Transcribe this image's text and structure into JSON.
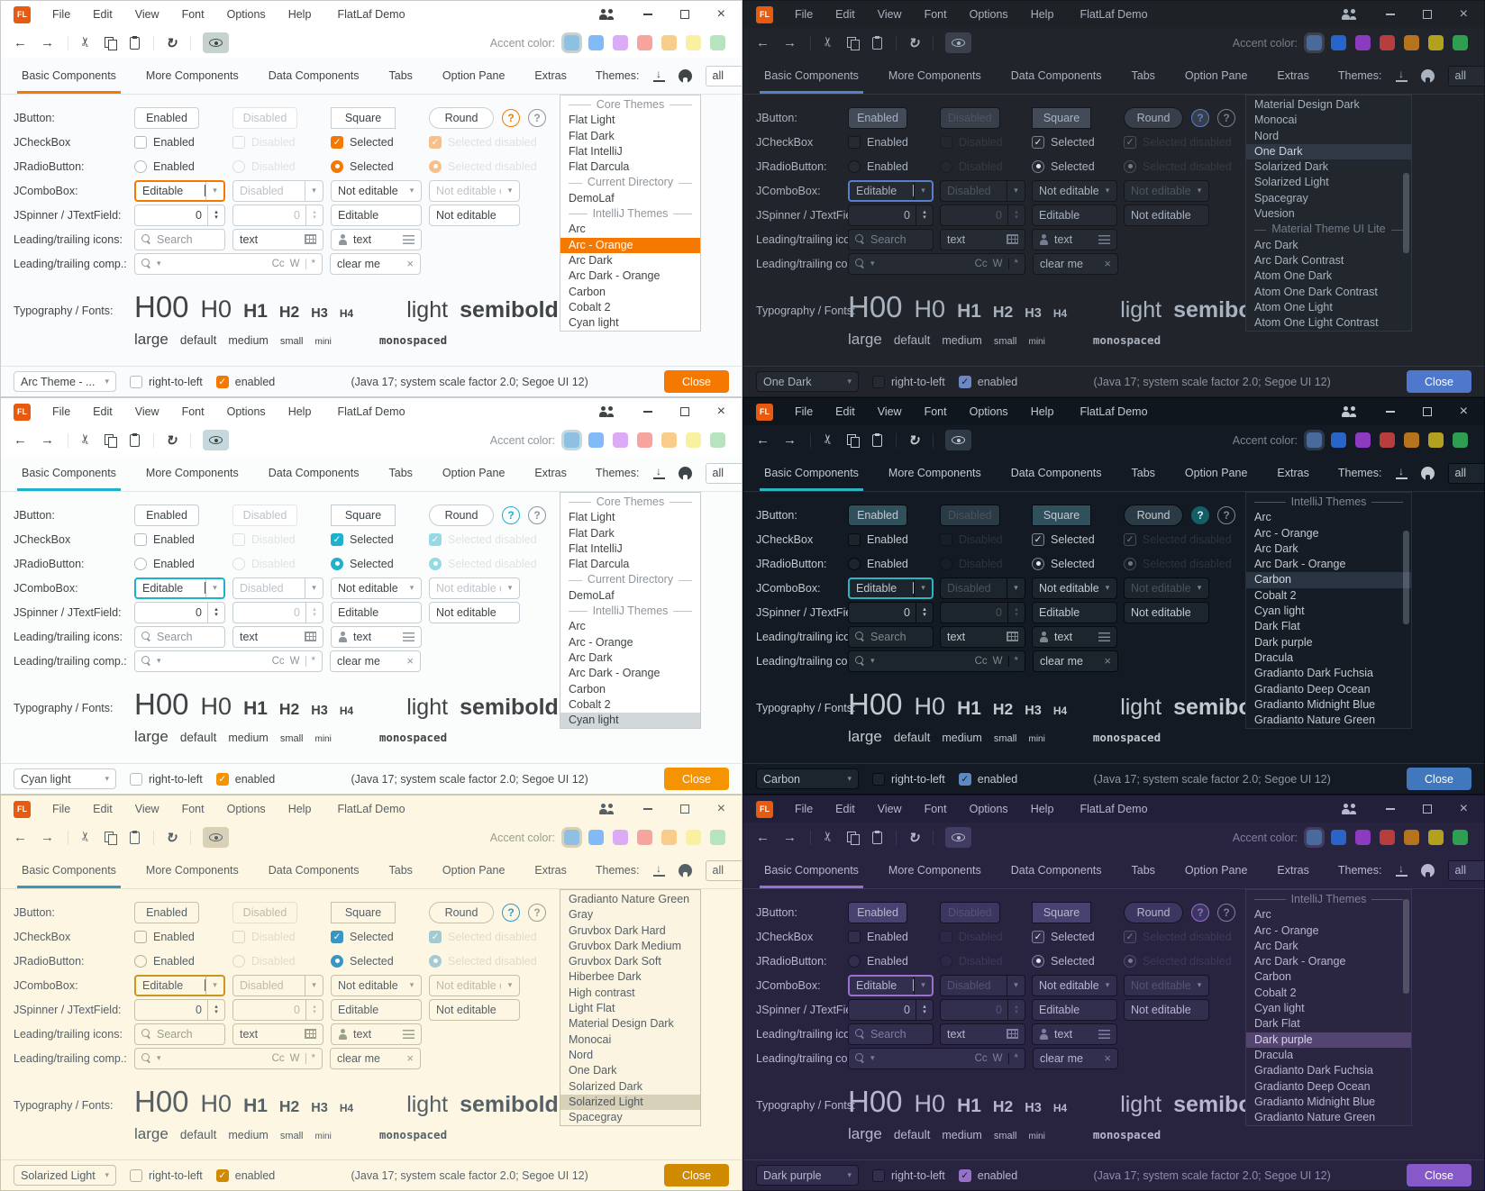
{
  "window": {
    "title": "FlatLaf Demo",
    "menus": [
      "File",
      "Edit",
      "View",
      "Font",
      "Options",
      "Help"
    ]
  },
  "toolbar": {
    "accent_label": "Accent color:",
    "swatches_light": [
      "#8fbfe3",
      "#82baf8",
      "#dcabf5",
      "#f8a49e",
      "#f8cd8b",
      "#f9f0a0",
      "#b7e4bf"
    ],
    "swatches_dark": [
      "#4a6a9c",
      "#2766c8",
      "#8c3ac0",
      "#b83d3d",
      "#b5731d",
      "#b3a01e",
      "#2f9e52"
    ]
  },
  "tabs": [
    "Basic Components",
    "More Components",
    "Data Components",
    "Tabs",
    "Option Pane",
    "Extras"
  ],
  "themes_header": {
    "label": "Themes:",
    "filter_value": "all"
  },
  "form": {
    "jbutton": {
      "label": "JButton:",
      "enabled": "Enabled",
      "disabled": "Disabled",
      "square": "Square",
      "round": "Round",
      "help": "?"
    },
    "jcheckbox": {
      "label": "JCheckBox",
      "enabled": "Enabled",
      "disabled": "Disabled",
      "selected": "Selected",
      "selected_disabled": "Selected disabled"
    },
    "jradio": {
      "label": "JRadioButton:",
      "enabled": "Enabled",
      "disabled": "Disabled",
      "selected": "Selected",
      "selected_disabled": "Selected disabled"
    },
    "jcombobox": {
      "label": "JComboBox:",
      "editable": "Editable",
      "disabled": "Disabled",
      "not_editable": "Not editable",
      "not_editable_disabled": "Not editable dis..."
    },
    "jspinner": {
      "label": "JSpinner / JTextField:",
      "value1": "0",
      "value2": "0",
      "editable": "Editable",
      "not_editable": "Not editable"
    },
    "icons_row": {
      "label": "Leading/trailing icons:",
      "search_placeholder": "Search",
      "text1": "text",
      "text2": "text"
    },
    "comp_row": {
      "label": "Leading/trailing comp.:",
      "match_case": "Cc",
      "whole_word": "W",
      "regex": "*",
      "clear": "clear me"
    },
    "typography": {
      "label": "Typography / Fonts:",
      "samples": [
        "H00",
        "H0",
        "H1",
        "H2",
        "H3",
        "H4"
      ],
      "light": "light",
      "semibold": "semibold",
      "sizes": [
        "large",
        "default",
        "medium",
        "small",
        "mini"
      ],
      "monospaced": "monospaced"
    }
  },
  "bottombar": {
    "rtl": "right-to-left",
    "enabled": "enabled",
    "status": "(Java 17;  system scale factor 2.0; Segoe UI 12)",
    "close": "Close"
  },
  "panels": [
    {
      "theme_class": "t-arc",
      "mode": "light",
      "theme_combo": "Arc Theme - ...",
      "accent": "#f57900",
      "close_color": "#f57900",
      "list": [
        {
          "sep": "Core Themes"
        },
        {
          "label": "Flat Light"
        },
        {
          "label": "Flat Dark"
        },
        {
          "label": "Flat IntelliJ"
        },
        {
          "label": "Flat Darcula"
        },
        {
          "sep": "Current Directory"
        },
        {
          "label": "DemoLaf"
        },
        {
          "sep": "IntelliJ Themes"
        },
        {
          "label": "Arc"
        },
        {
          "label": "Arc - Orange",
          "sel": true
        },
        {
          "label": "Arc Dark"
        },
        {
          "label": "Arc Dark - Orange"
        },
        {
          "label": "Carbon"
        },
        {
          "label": "Cobalt 2"
        },
        {
          "label": "Cyan light"
        }
      ]
    },
    {
      "theme_class": "t-onedark",
      "mode": "dark",
      "theme_combo": "One Dark",
      "accent": "#5680c9",
      "close_color": "#4d78cc",
      "scrollbar": {
        "top_pct": 33,
        "height_pct": 34
      },
      "list": [
        {
          "label": "Material Design Dark"
        },
        {
          "label": "Monocai"
        },
        {
          "label": "Nord"
        },
        {
          "label": "One Dark",
          "sel": true
        },
        {
          "label": "Solarized Dark"
        },
        {
          "label": "Solarized Light"
        },
        {
          "label": "Spacegray"
        },
        {
          "label": "Vuesion"
        },
        {
          "sep": "Material Theme UI Lite"
        },
        {
          "label": "Arc Dark"
        },
        {
          "label": "Arc Dark Contrast"
        },
        {
          "label": "Atom One Dark"
        },
        {
          "label": "Atom One Dark Contrast"
        },
        {
          "label": "Atom One Light"
        },
        {
          "label": "Atom One Light Contrast"
        }
      ]
    },
    {
      "theme_class": "t-cyan",
      "mode": "light",
      "theme_combo": "Cyan light",
      "accent": "#1fb1cc",
      "close_color": "#f59300",
      "list": [
        {
          "sep": "Core Themes"
        },
        {
          "label": "Flat Light"
        },
        {
          "label": "Flat Dark"
        },
        {
          "label": "Flat IntelliJ"
        },
        {
          "label": "Flat Darcula"
        },
        {
          "sep": "Current Directory"
        },
        {
          "label": "DemoLaf"
        },
        {
          "sep": "IntelliJ Themes"
        },
        {
          "label": "Arc"
        },
        {
          "label": "Arc - Orange"
        },
        {
          "label": "Arc Dark"
        },
        {
          "label": "Arc Dark - Orange"
        },
        {
          "label": "Carbon"
        },
        {
          "label": "Cobalt 2"
        },
        {
          "label": "Cyan light",
          "sel": true
        }
      ]
    },
    {
      "theme_class": "t-carbon",
      "mode": "dark",
      "theme_combo": "Carbon",
      "accent": "#2ab6c1",
      "close_color": "#4077bd",
      "scrollbar": {
        "top_pct": 16,
        "height_pct": 40
      },
      "list": [
        {
          "sep": "IntelliJ Themes"
        },
        {
          "label": "Arc"
        },
        {
          "label": "Arc - Orange"
        },
        {
          "label": "Arc Dark"
        },
        {
          "label": "Arc Dark - Orange"
        },
        {
          "label": "Carbon",
          "sel": true
        },
        {
          "label": "Cobalt 2"
        },
        {
          "label": "Cyan light"
        },
        {
          "label": "Dark Flat"
        },
        {
          "label": "Dark purple"
        },
        {
          "label": "Dracula"
        },
        {
          "label": "Gradianto Dark Fuchsia"
        },
        {
          "label": "Gradianto Deep Ocean"
        },
        {
          "label": "Gradianto Midnight Blue"
        },
        {
          "label": "Gradianto Nature Green"
        }
      ]
    },
    {
      "theme_class": "t-solar",
      "mode": "light",
      "theme_combo": "Solarized Light",
      "accent": "#3796c4",
      "close_color": "#cf8a00",
      "list": [
        {
          "label": "Gradianto Nature Green"
        },
        {
          "label": "Gray"
        },
        {
          "label": "Gruvbox Dark Hard"
        },
        {
          "label": "Gruvbox Dark Medium"
        },
        {
          "label": "Gruvbox Dark Soft"
        },
        {
          "label": "Hiberbee Dark"
        },
        {
          "label": "High contrast"
        },
        {
          "label": "Light Flat"
        },
        {
          "label": "Material Design Dark"
        },
        {
          "label": "Monocai"
        },
        {
          "label": "Nord"
        },
        {
          "label": "One Dark"
        },
        {
          "label": "Solarized Dark"
        },
        {
          "label": "Solarized Light",
          "sel": true
        },
        {
          "label": "Spacegray"
        }
      ]
    },
    {
      "theme_class": "t-purple",
      "mode": "dark",
      "theme_combo": "Dark purple",
      "accent": "#9a6fd0",
      "close_color": "#8658c8",
      "scrollbar": {
        "top_pct": 4,
        "height_pct": 40
      },
      "list": [
        {
          "sep": "IntelliJ Themes"
        },
        {
          "label": "Arc"
        },
        {
          "label": "Arc - Orange"
        },
        {
          "label": "Arc Dark"
        },
        {
          "label": "Arc Dark - Orange"
        },
        {
          "label": "Carbon"
        },
        {
          "label": "Cobalt 2"
        },
        {
          "label": "Cyan light"
        },
        {
          "label": "Dark Flat"
        },
        {
          "label": "Dark purple",
          "sel": true
        },
        {
          "label": "Dracula"
        },
        {
          "label": "Gradianto Dark Fuchsia"
        },
        {
          "label": "Gradianto Deep Ocean"
        },
        {
          "label": "Gradianto Midnight Blue"
        },
        {
          "label": "Gradianto Nature Green"
        }
      ]
    }
  ]
}
